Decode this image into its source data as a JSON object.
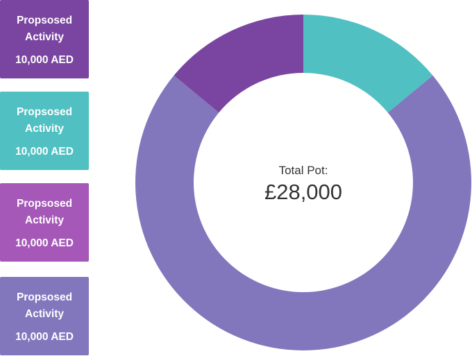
{
  "legend": {
    "items": [
      {
        "label": "Propsosed Activity",
        "amount": "10,000 AED",
        "color": "#7a45a0"
      },
      {
        "label": "Propsosed Activity",
        "amount": "10,000 AED",
        "color": "#50c0c2"
      },
      {
        "label": "Propsosed Activity",
        "amount": "10,000 AED",
        "color": "#a558b8"
      },
      {
        "label": "Propsosed Activity",
        "amount": "10,000 AED",
        "color": "#8277bd"
      }
    ]
  },
  "chart_data": {
    "type": "pie",
    "donut": true,
    "center_title": "Total Pot:",
    "center_value": "£28,000",
    "slices": [
      {
        "value": 14,
        "color": "#50c0c2"
      },
      {
        "value": 72,
        "color": "#8277bd"
      },
      {
        "value": 14,
        "color": "#7a45a0"
      }
    ]
  }
}
